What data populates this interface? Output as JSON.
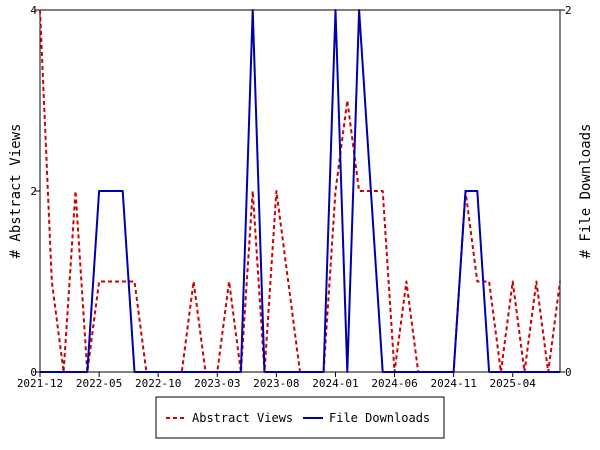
{
  "chart_data": {
    "type": "line",
    "x": [
      "2021-12",
      "2022-01",
      "2022-02",
      "2022-03",
      "2022-04",
      "2022-05",
      "2022-06",
      "2022-07",
      "2022-08",
      "2022-09",
      "2022-10",
      "2022-11",
      "2022-12",
      "2023-01",
      "2023-02",
      "2023-03",
      "2023-04",
      "2023-05",
      "2023-06",
      "2023-07",
      "2023-08",
      "2023-09",
      "2023-10",
      "2023-11",
      "2023-12",
      "2024-01",
      "2024-02",
      "2024-03",
      "2024-04",
      "2024-05",
      "2024-06",
      "2024-07",
      "2024-08",
      "2024-09",
      "2024-10",
      "2024-11",
      "2024-12",
      "2025-01",
      "2025-02",
      "2025-03",
      "2025-04",
      "2025-05",
      "2025-06",
      "2025-07",
      "2025-08"
    ],
    "x_ticks": [
      "2021-12",
      "2022-05",
      "2022-10",
      "2023-03",
      "2023-08",
      "2024-01",
      "2024-06",
      "2024-11",
      "2025-04"
    ],
    "series": [
      {
        "name": "Abstract Views",
        "axis": "left",
        "color": "#cc0000",
        "style": "dashed",
        "values": [
          4,
          1,
          0,
          2,
          0,
          1,
          1,
          1,
          1,
          0,
          0,
          0,
          0,
          1,
          0,
          0,
          1,
          0,
          2,
          0,
          2,
          1,
          0,
          0,
          0,
          2,
          3,
          2,
          2,
          2,
          0,
          1,
          0,
          0,
          0,
          0,
          2,
          1,
          1,
          0,
          1,
          0,
          1,
          0,
          1
        ]
      },
      {
        "name": "File Downloads",
        "axis": "right",
        "color": "#0000aa",
        "style": "solid",
        "values": [
          0,
          0,
          0,
          0,
          0,
          1,
          1,
          1,
          0,
          0,
          0,
          0,
          0,
          0,
          0,
          0,
          0,
          0,
          2,
          0,
          0,
          0,
          0,
          0,
          0,
          2,
          0,
          2,
          1,
          0,
          0,
          0,
          0,
          0,
          0,
          0,
          1,
          1,
          0,
          0,
          0,
          0,
          0,
          0,
          0
        ]
      }
    ],
    "ylabel": "# Abstract Views",
    "ylabel_right": "# File Downloads",
    "ylim": [
      0,
      4
    ],
    "ylim_right": [
      0,
      2
    ],
    "y_ticks": [
      "0",
      "2",
      "4"
    ],
    "y_ticks_right": [
      "0",
      "2"
    ],
    "legend": "bottom-center",
    "grid": false
  }
}
